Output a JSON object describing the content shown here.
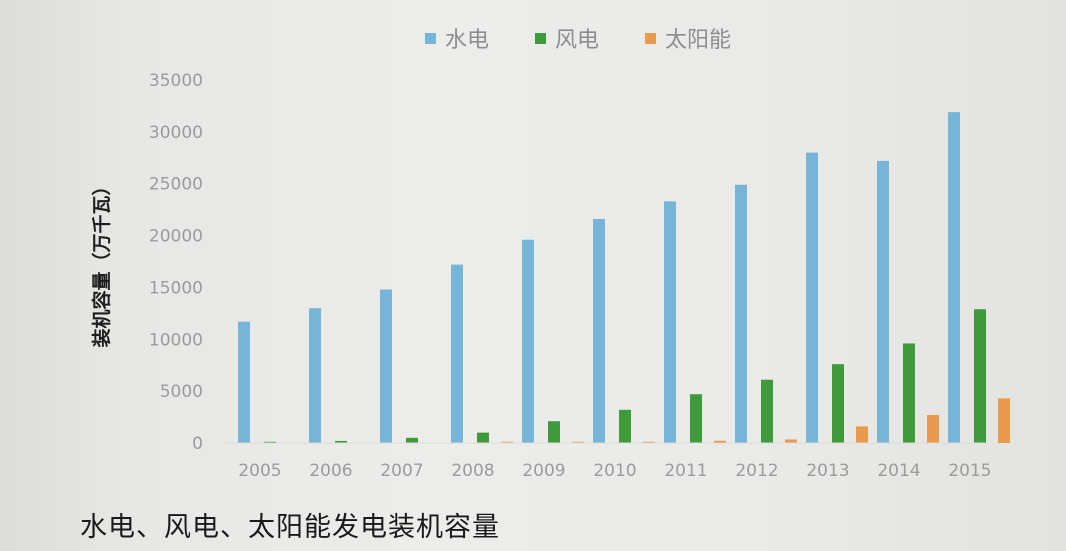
{
  "caption": "水电、风电、太阳能发电装机容量",
  "colors": {
    "hydro": "#76b5d8",
    "wind": "#3f9a3c",
    "solar": "#e99a4a",
    "grid": "#e0e1de"
  },
  "chart_data": {
    "type": "bar",
    "title": "",
    "ylabel": "装机容量（万千瓦）",
    "xlabel": "",
    "categories": [
      "2005",
      "2006",
      "2007",
      "2008",
      "2009",
      "2010",
      "2011",
      "2012",
      "2013",
      "2014",
      "2015"
    ],
    "series": [
      {
        "name": "水电",
        "color": "#76b5d8",
        "values": [
          11700,
          13000,
          14800,
          17200,
          19600,
          21600,
          23300,
          24900,
          28000,
          27200,
          31900
        ]
      },
      {
        "name": "风电",
        "color": "#3f9a3c",
        "values": [
          100,
          200,
          500,
          1000,
          2100,
          3200,
          4700,
          6100,
          7600,
          9600,
          12900
        ]
      },
      {
        "name": "太阳能",
        "color": "#e99a4a",
        "values": [
          0,
          0,
          0,
          10,
          30,
          80,
          220,
          340,
          1600,
          2700,
          4300
        ]
      }
    ],
    "ylim": [
      0,
      35000
    ],
    "yticks": [
      0,
      5000,
      10000,
      15000,
      20000,
      25000,
      30000,
      35000
    ],
    "legend_position": "top",
    "grid": false
  }
}
